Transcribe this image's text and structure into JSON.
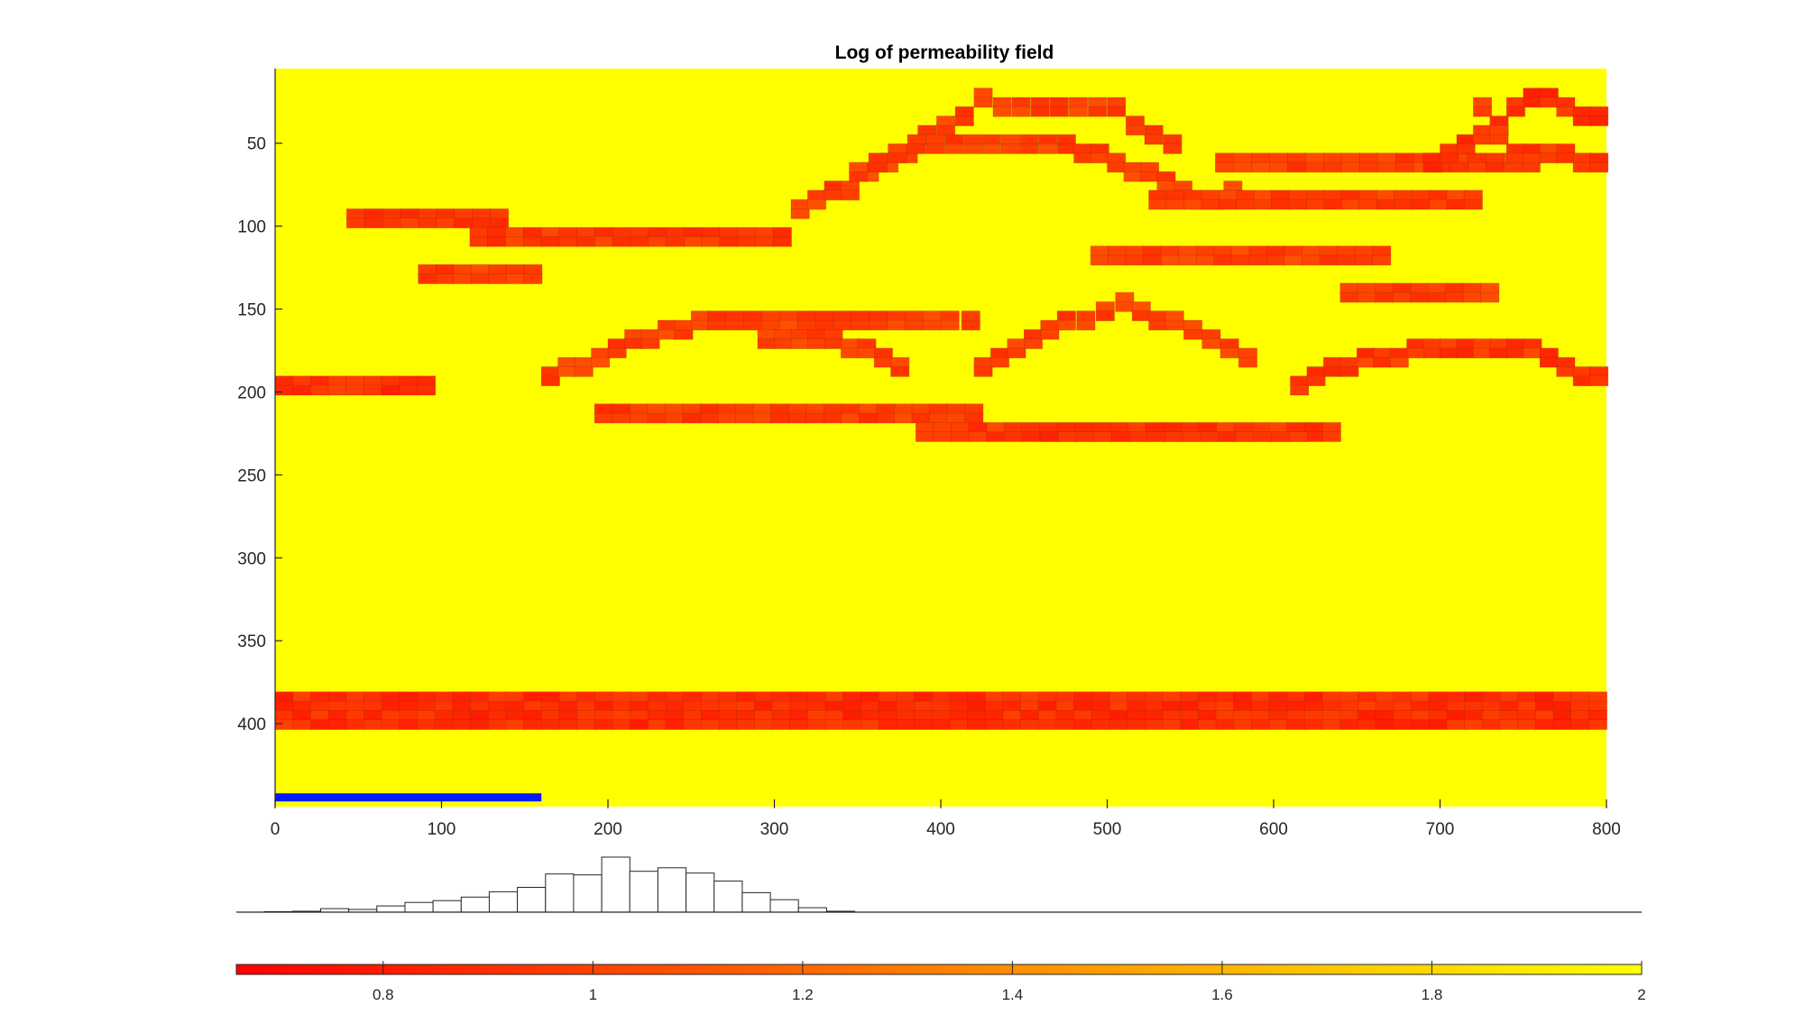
{
  "chart_data": [
    {
      "type": "heatmap",
      "title": "Log of permeability field",
      "xlim": [
        0,
        800
      ],
      "ylim": [
        450,
        5
      ],
      "x_ticks": [
        "0",
        "100",
        "200",
        "300",
        "400",
        "500",
        "600",
        "700",
        "800"
      ],
      "y_ticks": [
        "50",
        "100",
        "150",
        "200",
        "250",
        "300",
        "350",
        "400"
      ],
      "background_value": 2.0,
      "cell_size": [
        10.7,
        5.6
      ],
      "polylines": [
        {
          "name": "layer-1",
          "points": [
            [
              43,
              95
            ],
            [
              140,
              95
            ]
          ],
          "thickness": 2,
          "value": 0.95
        },
        {
          "name": "layer-2",
          "points": [
            [
              117,
              107
            ],
            [
              310,
              107
            ]
          ],
          "thickness": 2,
          "value": 0.95
        },
        {
          "name": "layer-3",
          "points": [
            [
              86,
              131
            ],
            [
              160,
              131
            ]
          ],
          "thickness": 2,
          "value": 0.98
        },
        {
          "name": "layer-4",
          "points": [
            [
              0,
              197
            ],
            [
              96,
              197
            ]
          ],
          "thickness": 2,
          "value": 0.92
        },
        {
          "name": "arch-a",
          "points": [
            [
              310,
              87
            ],
            [
              340,
              76
            ],
            [
              375,
              55
            ],
            [
              420,
              25
            ],
            [
              500,
              30
            ],
            [
              545,
              57
            ]
          ],
          "thickness": 2,
          "value": 1.0
        },
        {
          "name": "arch-a-lower",
          "points": [
            [
              345,
              65
            ],
            [
              380,
              52
            ],
            [
              470,
              52
            ],
            [
              510,
              65
            ],
            [
              550,
              82
            ],
            [
              580,
              80
            ]
          ],
          "thickness": 2,
          "value": 1.0
        },
        {
          "name": "layer-5",
          "points": [
            [
              565,
              64
            ],
            [
              760,
              64
            ]
          ],
          "thickness": 2,
          "value": 0.98
        },
        {
          "name": "layer-6",
          "points": [
            [
              525,
              82
            ],
            [
              725,
              82
            ]
          ],
          "thickness": 2,
          "value": 0.98
        },
        {
          "name": "arch-b",
          "points": [
            [
              690,
              63
            ],
            [
              720,
              45
            ],
            [
              750,
              22
            ],
            [
              800,
              37
            ]
          ],
          "thickness": 2,
          "value": 0.9
        },
        {
          "name": "arch-b-lower",
          "points": [
            [
              720,
              30
            ],
            [
              740,
              55
            ],
            [
              790,
              60
            ],
            [
              800,
              63
            ]
          ],
          "thickness": 2,
          "value": 0.95
        },
        {
          "name": "layer-7",
          "points": [
            [
              490,
              118
            ],
            [
              670,
              118
            ]
          ],
          "thickness": 2,
          "value": 1.0
        },
        {
          "name": "layer-8",
          "points": [
            [
              640,
              141
            ],
            [
              735,
              141
            ]
          ],
          "thickness": 2,
          "value": 1.0
        },
        {
          "name": "arch-c",
          "points": [
            [
              160,
              190
            ],
            [
              210,
              170
            ],
            [
              260,
              155
            ],
            [
              400,
              155
            ],
            [
              425,
              157
            ]
          ],
          "thickness": 2,
          "value": 1.0
        },
        {
          "name": "arch-c-lower",
          "points": [
            [
              290,
              166
            ],
            [
              330,
              166
            ],
            [
              380,
              190
            ]
          ],
          "thickness": 2,
          "value": 1.0
        },
        {
          "name": "arch-d",
          "points": [
            [
              420,
              182
            ],
            [
              470,
              157
            ],
            [
              505,
              148
            ],
            [
              535,
              157
            ],
            [
              590,
              182
            ]
          ],
          "thickness": 2,
          "value": 1.0
        },
        {
          "name": "arch-e",
          "points": [
            [
              610,
              195
            ],
            [
              650,
              180
            ],
            [
              700,
              172
            ],
            [
              740,
              172
            ],
            [
              800,
              197
            ]
          ],
          "thickness": 2,
          "value": 0.95
        },
        {
          "name": "layer-9",
          "points": [
            [
              192,
              210
            ],
            [
              425,
              210
            ]
          ],
          "thickness": 2,
          "value": 0.97
        },
        {
          "name": "layer-10",
          "points": [
            [
              385,
              225
            ],
            [
              640,
              225
            ]
          ],
          "thickness": 2,
          "value": 0.95
        },
        {
          "name": "layer-11",
          "points": [
            [
              460,
              232
            ],
            [
              620,
              232
            ]
          ],
          "thickness": 1,
          "value": 0.9
        },
        {
          "name": "bottom-layer",
          "points": [
            [
              0,
              387
            ],
            [
              800,
              387
            ]
          ],
          "thickness": 4,
          "value": 0.9
        }
      ],
      "marker_bar": {
        "x": [
          0,
          160
        ],
        "y": 442,
        "color": "#0019ff"
      }
    },
    {
      "type": "bar",
      "name": "histogram of log permeability",
      "bins": 50,
      "values": [
        0,
        0.5,
        1,
        4,
        3,
        7,
        11,
        13,
        17,
        23,
        28,
        43,
        42,
        62,
        46,
        50,
        44,
        35,
        22,
        14,
        5,
        1,
        0,
        0,
        0,
        0,
        0,
        0,
        0,
        0,
        0,
        0,
        0,
        0,
        0,
        0,
        0,
        0,
        0,
        0,
        0,
        0,
        0,
        0,
        0,
        0,
        0,
        0,
        0,
        0
      ]
    },
    {
      "type": "heatmap",
      "name": "colorbar",
      "clim": [
        0.66,
        2.0
      ],
      "ticks": [
        "0.8",
        "1",
        "1.2",
        "1.4",
        "1.6",
        "1.8",
        "2"
      ],
      "tick_values": [
        0.8,
        1.0,
        1.2,
        1.4,
        1.6,
        1.8,
        2.0
      ],
      "colors": [
        "#ff0000",
        "#ffff00"
      ]
    }
  ]
}
